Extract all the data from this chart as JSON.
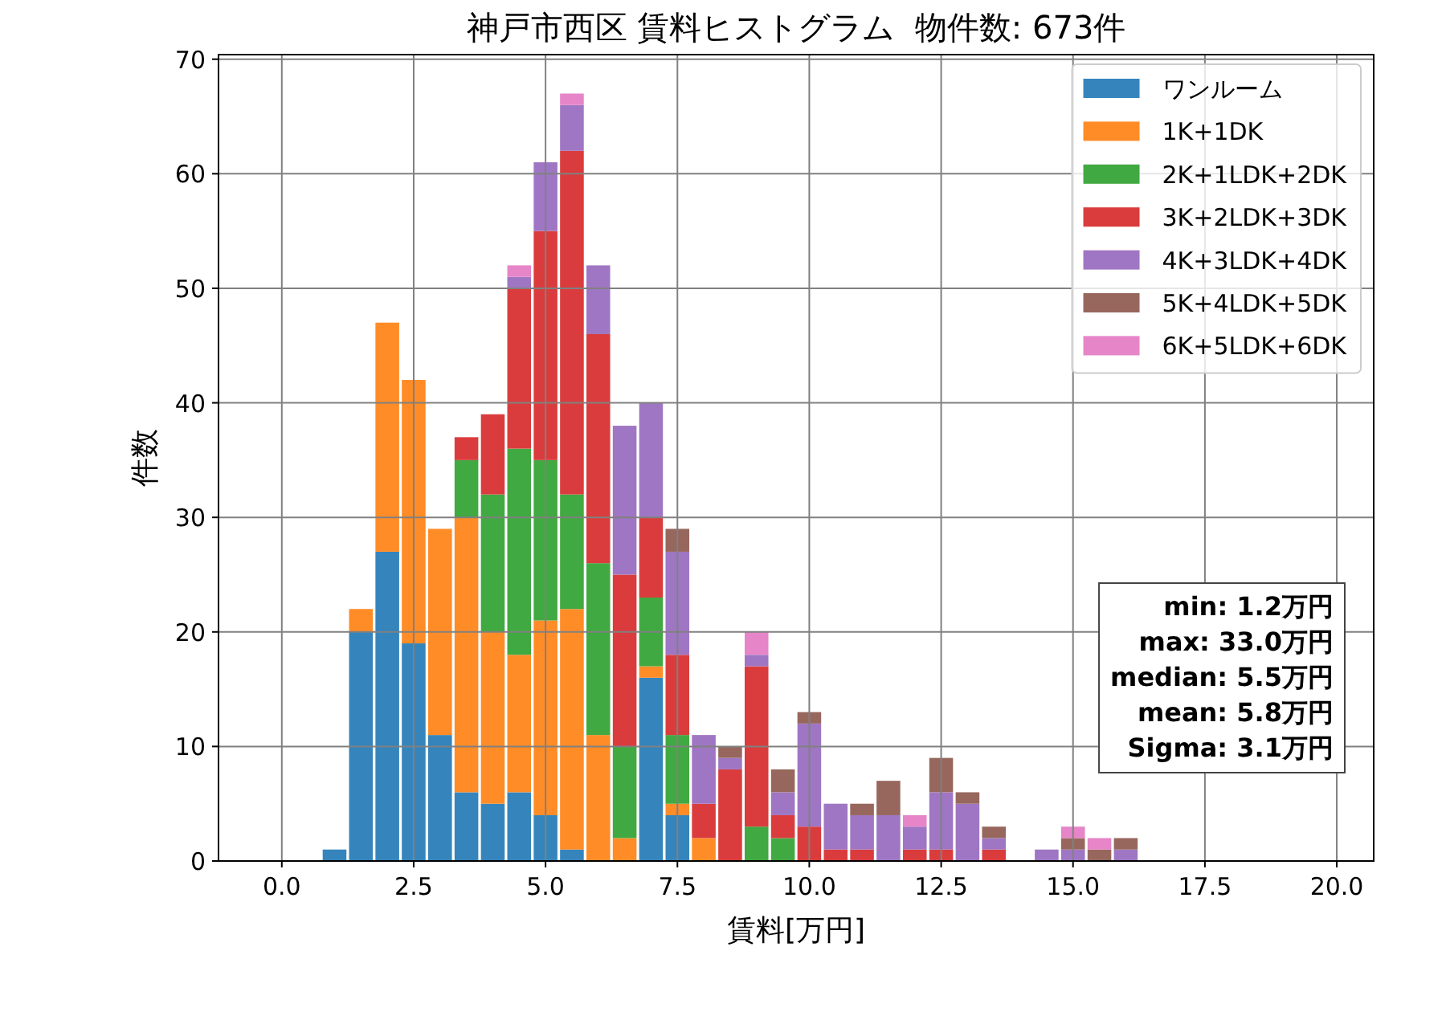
{
  "chart_data": {
    "type": "bar",
    "title": "神戸市西区 賃料ヒストグラム  物件数: 673件",
    "xlabel": "賃料[万円]",
    "ylabel": "件数",
    "x": [
      1,
      1.5,
      2,
      2.5,
      3,
      3.5,
      4,
      4.5,
      5,
      5.5,
      6,
      6.5,
      7,
      7.5,
      8,
      8.5,
      9,
      9.5,
      10,
      10.5,
      11,
      11.5,
      12,
      12.5,
      13,
      13.5,
      14,
      14.5,
      15,
      15.5,
      16
    ],
    "stacked": true,
    "series": [
      {
        "name": "ワンルーム",
        "color": "#3585bc",
        "values": [
          1,
          20,
          27,
          19,
          11,
          6,
          5,
          6,
          4,
          1,
          0,
          0,
          16,
          4,
          0,
          0,
          0,
          0,
          0,
          0,
          0,
          0,
          0,
          0,
          0,
          0,
          0,
          0,
          0,
          0,
          0
        ]
      },
      {
        "name": "1K+1DK",
        "color": "#ff8c26",
        "values": [
          0,
          2,
          20,
          23,
          18,
          24,
          15,
          12,
          17,
          21,
          11,
          2,
          1,
          1,
          2,
          0,
          0,
          0,
          0,
          0,
          0,
          0,
          0,
          0,
          0,
          0,
          0,
          0,
          0,
          0,
          0
        ]
      },
      {
        "name": "2K+1LDK+2DK",
        "color": "#41a941",
        "values": [
          0,
          0,
          0,
          0,
          0,
          5,
          12,
          18,
          14,
          10,
          15,
          8,
          6,
          6,
          0,
          0,
          3,
          2,
          0,
          0,
          0,
          0,
          0,
          0,
          0,
          0,
          0,
          0,
          0,
          0,
          0
        ]
      },
      {
        "name": "3K+2LDK+3DK",
        "color": "#da3c3d",
        "values": [
          0,
          0,
          0,
          0,
          0,
          2,
          7,
          14,
          20,
          30,
          20,
          15,
          7,
          7,
          3,
          8,
          14,
          2,
          3,
          1,
          1,
          0,
          1,
          1,
          0,
          1,
          0,
          0,
          0,
          0,
          0
        ]
      },
      {
        "name": "4K+3LDK+4DK",
        "color": "#9f76c3",
        "values": [
          0,
          0,
          0,
          0,
          0,
          0,
          0,
          1,
          6,
          4,
          6,
          13,
          10,
          9,
          6,
          1,
          1,
          2,
          9,
          4,
          3,
          4,
          2,
          5,
          5,
          1,
          0,
          1,
          1,
          0,
          1
        ]
      },
      {
        "name": "5K+4LDK+5DK",
        "color": "#97675d",
        "values": [
          0,
          0,
          0,
          0,
          0,
          0,
          0,
          0,
          0,
          0,
          0,
          0,
          0,
          2,
          0,
          1,
          0,
          2,
          1,
          0,
          1,
          3,
          0,
          3,
          1,
          1,
          0,
          0,
          1,
          1,
          1
        ]
      },
      {
        "name": "6K+5LDK+6DK",
        "color": "#e685c8",
        "values": [
          0,
          0,
          0,
          0,
          0,
          0,
          0,
          1,
          0,
          1,
          0,
          0,
          0,
          0,
          0,
          0,
          2,
          0,
          0,
          0,
          0,
          0,
          1,
          0,
          0,
          0,
          0,
          0,
          1,
          1,
          0
        ]
      }
    ],
    "xlim": [
      -1.2,
      20.7
    ],
    "ylim": [
      0,
      70.4
    ],
    "xticks": [
      {
        "value": 0,
        "label": "0.0"
      },
      2.5,
      {
        "value": 5,
        "label": "5.0"
      },
      7.5,
      {
        "value": 10,
        "label": "10.0"
      },
      12.5,
      {
        "value": 15,
        "label": "15.0"
      },
      17.5,
      {
        "value": 20,
        "label": "20.0"
      }
    ],
    "yticks": [
      0,
      10,
      20,
      30,
      40,
      50,
      60,
      70
    ],
    "grid": true,
    "legend": "top right",
    "annotations": [
      "min: 1.2万円",
      "max: 33.0万円",
      "median: 5.5万円",
      "mean: 5.8万円",
      "Sigma: 3.1万円"
    ]
  }
}
